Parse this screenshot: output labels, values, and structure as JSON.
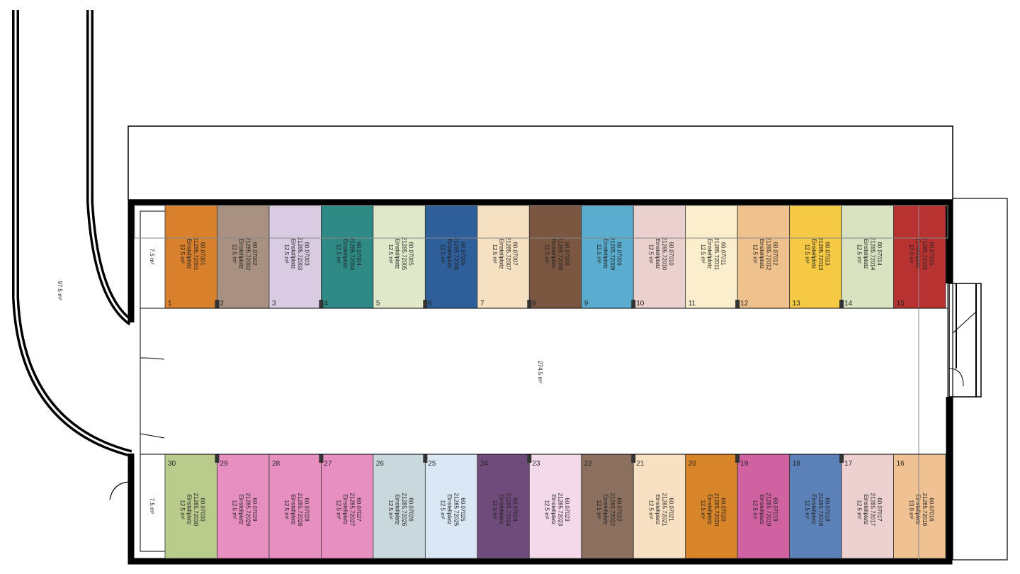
{
  "plan": {
    "areas": {
      "ramp": "97.5 m²",
      "aisle": "274.5 m²",
      "top_left": "7.5 m²",
      "bottom_left": "7.5 m²"
    },
    "top_row": [
      {
        "number": "1",
        "id": "60.07001",
        "code": "21285.72001",
        "type": "Einstellplatz",
        "area": "12.5 m²",
        "color": "#d8802c"
      },
      {
        "number": "2",
        "id": "60.07002",
        "code": "21285.72002",
        "type": "Einstellplatz",
        "area": "12.5 m²",
        "color": "#a89181"
      },
      {
        "number": "3",
        "id": "60.07003",
        "code": "21285.72003",
        "type": "Einstellplatz",
        "area": "12.5 m²",
        "color": "#d9cbe1"
      },
      {
        "number": "4",
        "id": "60.07004",
        "code": "21285.72004",
        "type": "Einstellplatz",
        "area": "12.5 m²",
        "color": "#2f8a86"
      },
      {
        "number": "5",
        "id": "60.07005",
        "code": "21285.72005",
        "type": "Einstellplatz",
        "area": "12.5 m²",
        "color": "#dfe8c8"
      },
      {
        "number": "6",
        "id": "60.07006",
        "code": "21285.72006",
        "type": "Einstellplatz",
        "area": "12.5 m²",
        "color": "#2f5f9a"
      },
      {
        "number": "7",
        "id": "60.07007",
        "code": "21285.72007",
        "type": "Einstellplatz",
        "area": "12.5 m²",
        "color": "#f5e0c2"
      },
      {
        "number": "8",
        "id": "60.07008",
        "code": "21285.72008",
        "type": "Einstellplatz",
        "area": "12.5 m²",
        "color": "#7b5641"
      },
      {
        "number": "9",
        "id": "60.07009",
        "code": "21285.72009",
        "type": "Einstellplatz",
        "area": "12.5 m²",
        "color": "#5badd0"
      },
      {
        "number": "10",
        "id": "60.07010",
        "code": "21285.72010",
        "type": "Einstellplatz",
        "area": "12.5 m²",
        "color": "#ebd1cd"
      },
      {
        "number": "11",
        "id": "60.07011",
        "code": "21285.72011",
        "type": "Einstellplatz",
        "area": "12.5 m²",
        "color": "#fbeecc"
      },
      {
        "number": "12",
        "id": "60.07012",
        "code": "21285.72012",
        "type": "Einstellplatz",
        "area": "12.5 m²",
        "color": "#efc18c"
      },
      {
        "number": "13",
        "id": "60.07013",
        "code": "21285.72013",
        "type": "Einstellplatz",
        "area": "12.5 m²",
        "color": "#f5c944"
      },
      {
        "number": "14",
        "id": "60.07014",
        "code": "21285.72014",
        "type": "Einstellplatz",
        "area": "12.5 m²",
        "color": "#d9e3c2"
      },
      {
        "number": "15",
        "id": "60.07015",
        "code": "21285.72015",
        "type": "Einstellplatz",
        "area": "13.0 m²",
        "color": "#b83232"
      }
    ],
    "bottom_row": [
      {
        "number": "30",
        "id": "60.07030",
        "code": "21285.72030",
        "type": "Einstellplatz",
        "area": "12.5 m²",
        "color": "#b9cc8c"
      },
      {
        "number": "29",
        "id": "60.07029",
        "code": "21285.72029",
        "type": "Einstellplatz",
        "area": "12.5 m²",
        "color": "#e78fc1"
      },
      {
        "number": "28",
        "id": "60.07028",
        "code": "21285.72028",
        "type": "Einstellplatz",
        "area": "12.5 m²",
        "color": "#e78fc1"
      },
      {
        "number": "27",
        "id": "60.07027",
        "code": "21285.72027",
        "type": "Einstellplatz",
        "area": "12.5 m²",
        "color": "#e78fc1"
      },
      {
        "number": "26",
        "id": "60.07026",
        "code": "21285.72026",
        "type": "Einstellplatz",
        "area": "12.5 m²",
        "color": "#c9d8dc"
      },
      {
        "number": "25",
        "id": "60.07025",
        "code": "21285.72025",
        "type": "Einstellplatz",
        "area": "12.5 m²",
        "color": "#d9e8f4"
      },
      {
        "number": "24",
        "id": "60.07024",
        "code": "21285.72024",
        "type": "Einstellplatz",
        "area": "12.5 m²",
        "color": "#6f4b7b"
      },
      {
        "number": "23",
        "id": "60.07023",
        "code": "21285.72023",
        "type": "Einstellplatz",
        "area": "12.5 m²",
        "color": "#f3d9e9"
      },
      {
        "number": "22",
        "id": "60.07022",
        "code": "21285.72022",
        "type": "Einstellplatz",
        "area": "12.5 m²",
        "color": "#8b6f5f"
      },
      {
        "number": "21",
        "id": "60.07021",
        "code": "21285.72021",
        "type": "Einstellplatz",
        "area": "12.5 m²",
        "color": "#f8e1c2"
      },
      {
        "number": "20",
        "id": "60.07020",
        "code": "21285.72020",
        "type": "Einstellplatz",
        "area": "12.5 m²",
        "color": "#d8852a"
      },
      {
        "number": "19",
        "id": "60.07019",
        "code": "21285.72019",
        "type": "Einstellplatz",
        "area": "12.5 m²",
        "color": "#d062a1"
      },
      {
        "number": "18",
        "id": "60.07018",
        "code": "21285.72018",
        "type": "Einstellplatz",
        "area": "12.5 m²",
        "color": "#5b81b8"
      },
      {
        "number": "17",
        "id": "60.07017",
        "code": "21285.72017",
        "type": "Einstellplatz",
        "area": "12.5 m²",
        "color": "#edd1d1"
      },
      {
        "number": "16",
        "id": "60.07016",
        "code": "21285.72016",
        "type": "Einstellplatz",
        "area": "13.0 m²",
        "color": "#f0c192"
      }
    ]
  }
}
